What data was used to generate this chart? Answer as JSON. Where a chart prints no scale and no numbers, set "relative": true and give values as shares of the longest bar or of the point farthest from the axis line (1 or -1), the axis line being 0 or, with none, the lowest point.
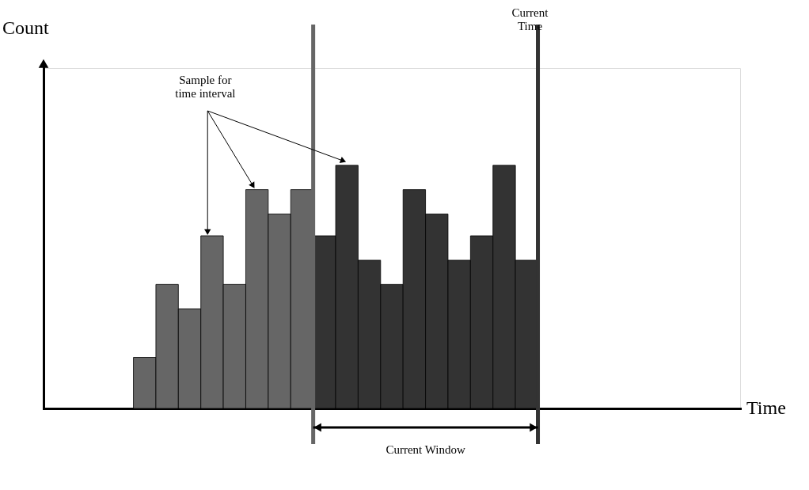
{
  "chart_data": {
    "type": "bar",
    "relative": true,
    "categories": [
      null,
      null,
      null,
      null,
      null,
      null,
      null,
      null,
      null,
      null,
      null,
      null,
      null,
      null,
      null,
      null,
      null,
      null
    ],
    "values": [
      0.21,
      0.51,
      0.41,
      0.71,
      0.51,
      0.9,
      0.8,
      0.9,
      0.71,
      1,
      0.61,
      0.51,
      0.9,
      0.8,
      0.61,
      0.71,
      1,
      0.61
    ],
    "colors": [
      "#666666",
      "#666666",
      "#666666",
      "#666666",
      "#666666",
      "#666666",
      "#666666",
      "#666666",
      "#333333",
      "#333333",
      "#333333",
      "#333333",
      "#333333",
      "#333333",
      "#333333",
      "#333333",
      "#333333",
      "#333333"
    ],
    "tick_labels": false,
    "grid": false,
    "annotations": [
      "Sample for time interval",
      "Current Time",
      "Current Window",
      "Count",
      "Time"
    ]
  }
}
